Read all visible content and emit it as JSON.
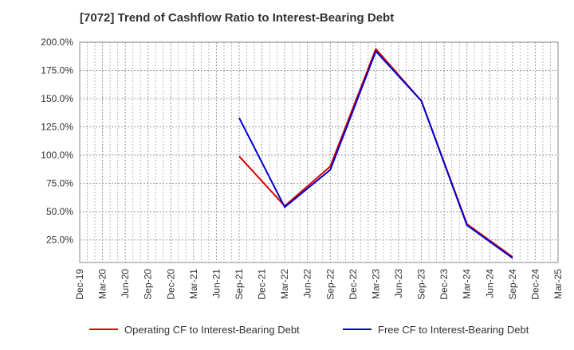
{
  "chart_data": {
    "type": "line",
    "title": "[7072]  Trend of Cashflow Ratio to Interest-Bearing Debt",
    "xlabel": "",
    "ylabel": "",
    "categories": [
      "Dec-19",
      "Mar-20",
      "Jun-20",
      "Sep-20",
      "Dec-20",
      "Mar-21",
      "Jun-21",
      "Sep-21",
      "Dec-21",
      "Mar-22",
      "Jun-22",
      "Sep-22",
      "Dec-22",
      "Mar-23",
      "Jun-23",
      "Sep-23",
      "Dec-23",
      "Mar-24",
      "Jun-24",
      "Sep-24",
      "Dec-24",
      "Mar-25"
    ],
    "ylim": [
      5,
      200
    ],
    "yticks": [
      25,
      50,
      75,
      100,
      125,
      150,
      175,
      200
    ],
    "ytick_labels": [
      "25.0%",
      "50.0%",
      "75.0%",
      "100.0%",
      "125.0%",
      "150.0%",
      "175.0%",
      "200.0%"
    ],
    "grid": true,
    "legend_position": "bottom",
    "series": [
      {
        "name": "Operating CF to Interest-Bearing Debt",
        "color": "#dd0000",
        "values": [
          null,
          null,
          null,
          null,
          null,
          null,
          null,
          99,
          null,
          55,
          null,
          90,
          null,
          194,
          null,
          148,
          null,
          39,
          null,
          10,
          null,
          null
        ]
      },
      {
        "name": "Free CF to Interest-Bearing Debt",
        "color": "#0000cc",
        "values": [
          null,
          null,
          null,
          null,
          null,
          null,
          null,
          133,
          null,
          54,
          null,
          87,
          null,
          192,
          null,
          148,
          null,
          38,
          null,
          9,
          null,
          null
        ]
      }
    ]
  }
}
